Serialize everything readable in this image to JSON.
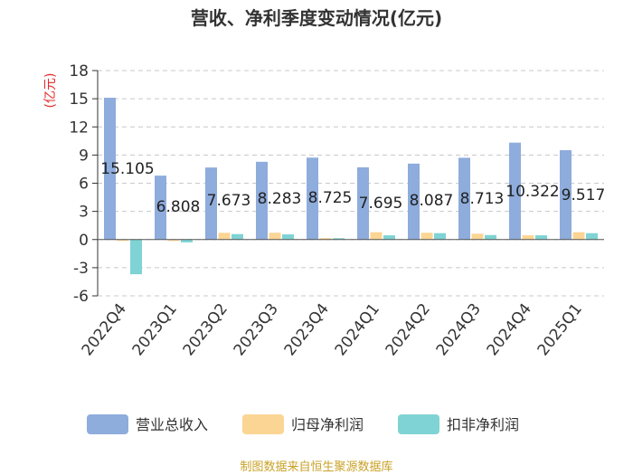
{
  "chart_data": {
    "type": "bar",
    "title": "营收、净利季度变动情况(亿元)",
    "unit_label": "(亿元)",
    "categories": [
      "2022Q4",
      "2023Q1",
      "2023Q2",
      "2023Q3",
      "2023Q4",
      "2024Q1",
      "2024Q2",
      "2024Q3",
      "2024Q4",
      "2025Q1"
    ],
    "series": [
      {
        "name": "营业总收入",
        "color": "#8eacdc",
        "values": [
          15.105,
          6.808,
          7.673,
          8.283,
          8.725,
          7.695,
          8.087,
          8.713,
          10.322,
          9.517
        ]
      },
      {
        "name": "归母净利润",
        "color": "#fbd593",
        "values": [
          -0.05,
          -0.15,
          0.72,
          0.72,
          0.15,
          0.78,
          0.72,
          0.62,
          0.45,
          0.78
        ]
      },
      {
        "name": "扣非净利润",
        "color": "#7fd3d4",
        "values": [
          -3.7,
          -0.3,
          0.58,
          0.55,
          0.1,
          0.45,
          0.68,
          0.48,
          0.45,
          0.68
        ]
      }
    ],
    "data_labels": [
      "15.105",
      "6.808",
      "7.673",
      "8.283",
      "8.725",
      "7.695",
      "8.087",
      "8.713",
      "10.322",
      "9.517"
    ],
    "ylim": [
      -6,
      18
    ],
    "yticks": [
      -6,
      -3,
      0,
      3,
      6,
      9,
      12,
      15,
      18
    ],
    "grid": true,
    "legend_position": "bottom"
  },
  "source_text": "制图数据来自恒生聚源数据库"
}
